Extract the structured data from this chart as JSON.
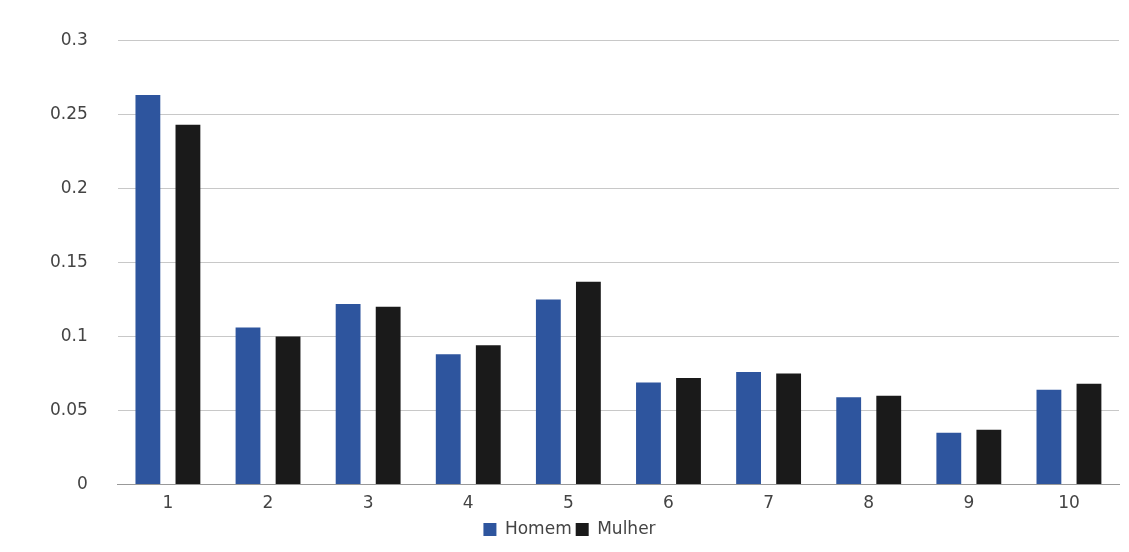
{
  "chart_data": {
    "type": "bar",
    "categories": [
      "1",
      "2",
      "3",
      "4",
      "5",
      "6",
      "7",
      "8",
      "9",
      "10"
    ],
    "series": [
      {
        "name": "Homem",
        "color": "#2e559e",
        "values": [
          0.263,
          0.106,
          0.122,
          0.088,
          0.125,
          0.069,
          0.076,
          0.059,
          0.035,
          0.064
        ]
      },
      {
        "name": "Mulher",
        "color": "#1a1a1a",
        "values": [
          0.243,
          0.1,
          0.12,
          0.094,
          0.137,
          0.072,
          0.075,
          0.06,
          0.037,
          0.068
        ]
      }
    ],
    "ylim": [
      0,
      0.3
    ],
    "yticks": [
      0,
      0.05,
      0.1,
      0.15,
      0.2,
      0.25,
      0.3
    ],
    "grid": "y",
    "legend": "bottom"
  }
}
